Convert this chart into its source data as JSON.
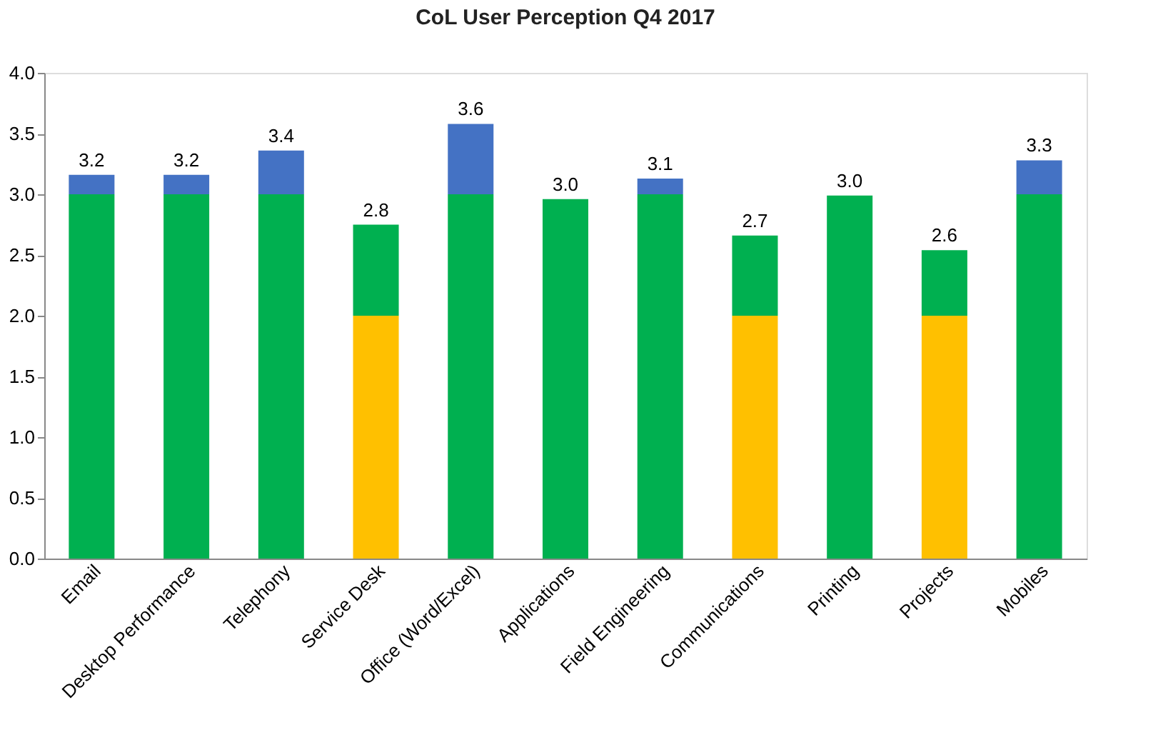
{
  "chart_data": {
    "type": "bar",
    "title": "CoL User Perception Q4 2017",
    "stacked": true,
    "categories": [
      "Email",
      "Desktop Performance",
      "Telephony",
      "Service Desk",
      "Office (Word/Excel)",
      "Applications",
      "Field Engineering",
      "Communications",
      "Printing",
      "Projects",
      "Mobiles"
    ],
    "series": [
      {
        "color": "#ffc000",
        "values": [
          null,
          null,
          null,
          2.0,
          null,
          null,
          null,
          2.0,
          null,
          2.0,
          null
        ]
      },
      {
        "color": "#00b050",
        "values": [
          3.0,
          3.0,
          3.0,
          0.75,
          3.0,
          2.96,
          3.0,
          0.66,
          2.99,
          0.54,
          3.0
        ]
      },
      {
        "color": "#4472c4",
        "values": [
          0.16,
          0.16,
          0.36,
          null,
          0.58,
          null,
          0.13,
          null,
          null,
          null,
          0.28
        ]
      }
    ],
    "totals": [
      "3.2",
      "3.2",
      "3.4",
      "2.8",
      "3.6",
      "3.0",
      "3.1",
      "2.7",
      "3.0",
      "2.6",
      "3.3"
    ],
    "ylim": [
      0,
      4
    ],
    "yticks": [
      {
        "value": 0,
        "label": "0.0"
      },
      {
        "value": 0.5,
        "label": "0.5"
      },
      {
        "value": 1,
        "label": "1.0"
      },
      {
        "value": 1.5,
        "label": "1.5"
      },
      {
        "value": 2,
        "label": "2.0"
      },
      {
        "value": 2.5,
        "label": "2.5"
      },
      {
        "value": 3,
        "label": "3.0"
      },
      {
        "value": 3.5,
        "label": "3.5"
      },
      {
        "value": 4,
        "label": "4.0"
      }
    ],
    "grid": false,
    "legend": false
  }
}
